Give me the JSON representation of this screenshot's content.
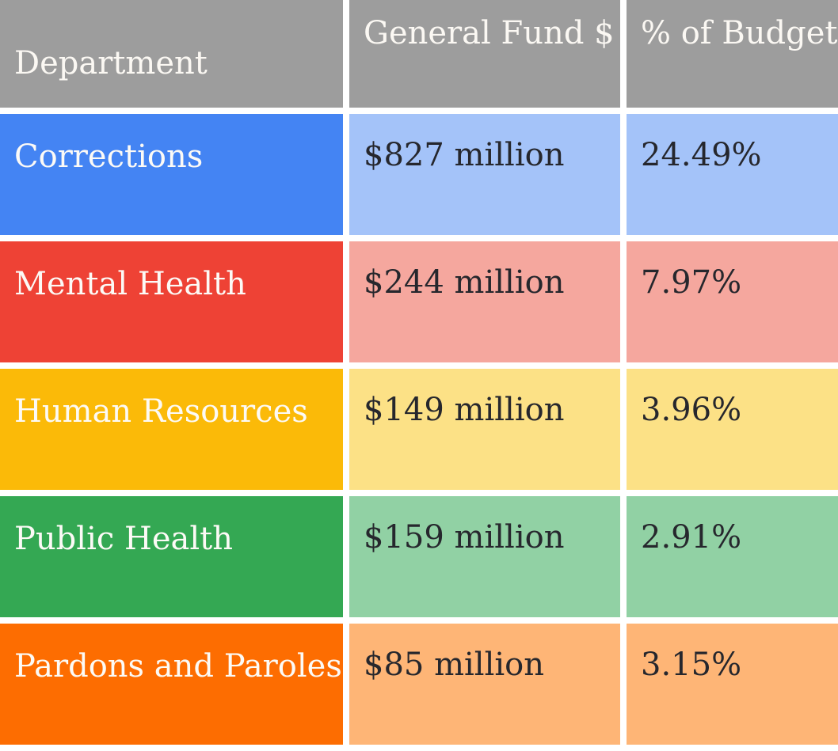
{
  "chart_data": {
    "type": "table",
    "columns": [
      "Department",
      "General Fund $",
      "% of Budget"
    ],
    "rows": [
      {
        "department": "Corrections",
        "general_fund": "$827 million",
        "pct_of_budget": "24.49%"
      },
      {
        "department": "Mental Health",
        "general_fund": "$244 million",
        "pct_of_budget": "7.97%"
      },
      {
        "department": "Human Resources",
        "general_fund": "$149 million",
        "pct_of_budget": "3.96%"
      },
      {
        "department": "Public Health",
        "general_fund": "$159 million",
        "pct_of_budget": "2.91%"
      },
      {
        "department": "Pardons and Paroles",
        "general_fund": "$85 million",
        "pct_of_budget": "3.15%"
      }
    ]
  },
  "colors": {
    "header_bg": "#9D9D9D",
    "header_text": "#FBF8F3",
    "department_text": "#FCFAF6",
    "value_text": "#26272D",
    "grid_gap": "#FFFFFF",
    "rows": [
      {
        "solid": "#4484F3",
        "tint": "#A4C3F9"
      },
      {
        "solid": "#EE4235",
        "tint": "#F5A79E"
      },
      {
        "solid": "#FBBA08",
        "tint": "#FCE186"
      },
      {
        "solid": "#34A853",
        "tint": "#91D1A4"
      },
      {
        "solid": "#FD6D01",
        "tint": "#FEB576"
      }
    ]
  }
}
